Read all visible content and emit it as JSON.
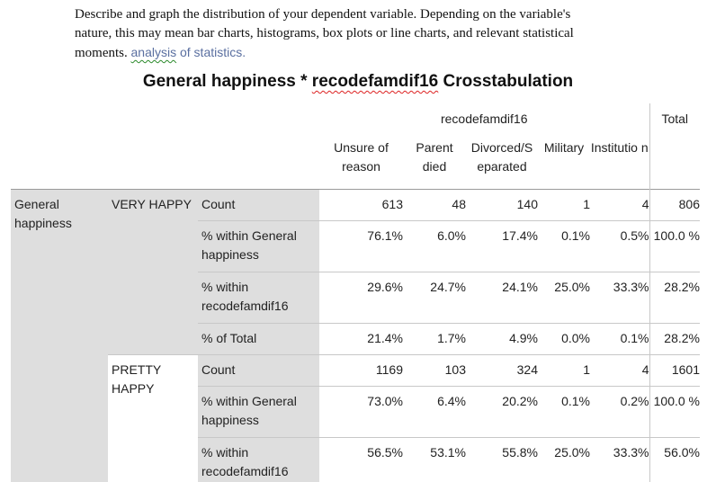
{
  "intro": {
    "line1": "Describe and graph the distribution of your dependent variable. Depending on the variable's",
    "line2": "nature, this may mean bar charts, histograms, box plots or line charts, and relevant statistical",
    "line3_a": "moments.",
    "line3_b": "analysis",
    "line3_c": " of statistics."
  },
  "table": {
    "title_a": "General happiness * ",
    "title_b": "recodefamdif16",
    "title_c": " Crosstabulation",
    "col_group": "recodefamdif16",
    "total_header": "Total",
    "col_headers": [
      "Unsure of reason",
      "Parent died",
      "Divorced/S eparated",
      "Military",
      "Institutio n"
    ],
    "row_var": "General happiness",
    "groups": [
      {
        "label": "VERY HAPPY",
        "rows": [
          {
            "stat": "Count",
            "values": [
              "613",
              "48",
              "140",
              "1",
              "4"
            ],
            "total": "806"
          },
          {
            "stat": "% within General happiness",
            "values": [
              "76.1%",
              "6.0%",
              "17.4%",
              "0.1%",
              "0.5%"
            ],
            "total": "100.0 %"
          },
          {
            "stat": "% within recodefamdif16",
            "values": [
              "29.6%",
              "24.7%",
              "24.1%",
              "25.0%",
              "33.3%"
            ],
            "total": "28.2%"
          },
          {
            "stat": "% of Total",
            "values": [
              "21.4%",
              "1.7%",
              "4.9%",
              "0.0%",
              "0.1%"
            ],
            "total": "28.2%"
          }
        ]
      },
      {
        "label": "PRETTY HAPPY",
        "rows": [
          {
            "stat": "Count",
            "values": [
              "1169",
              "103",
              "324",
              "1",
              "4"
            ],
            "total": "1601"
          },
          {
            "stat": "% within General happiness",
            "values": [
              "73.0%",
              "6.4%",
              "20.2%",
              "0.1%",
              "0.2%"
            ],
            "total": "100.0 %"
          },
          {
            "stat": "% within recodefamdif16",
            "values": [
              "56.5%",
              "53.1%",
              "55.8%",
              "25.0%",
              "33.3%"
            ],
            "total": "56.0%"
          }
        ]
      }
    ]
  }
}
